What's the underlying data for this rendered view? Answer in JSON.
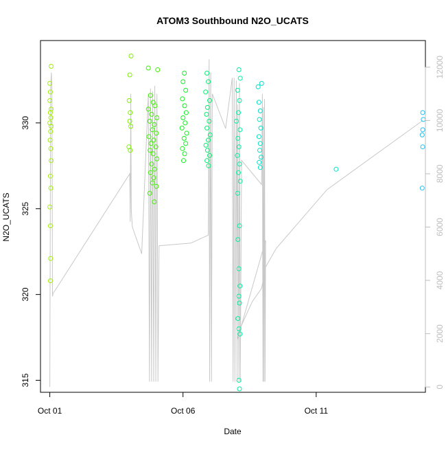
{
  "chart_data": {
    "type": "scatter",
    "title": "ATOM3 Southbound N2O_UCATS",
    "xlabel": "Date",
    "ylabel": "N2O_UCATS",
    "x_ticks": [
      "Oct 01",
      "Oct 06",
      "Oct 11"
    ],
    "y_ticks": [
      "315",
      "320",
      "325",
      "330"
    ],
    "y2_ticks": [
      "0",
      "2000",
      "4000",
      "6000",
      "8000",
      "10000",
      "12000"
    ],
    "xlim": [
      -0.35,
      14.1
    ],
    "ylim": [
      314.3,
      334.8
    ],
    "y2lim": [
      -200,
      13000
    ],
    "grid": false,
    "legend": "none",
    "colors": {
      "altitude_line": "#c8c8c8",
      "right_axis": "#bdbdbd",
      "point_scale": [
        "#a0f000",
        "#7ef000",
        "#3ef000",
        "#10f020",
        "#00f070",
        "#00f0a0",
        "#00e0c8",
        "#20c0f0"
      ]
    },
    "series": [
      {
        "name": "N2O_UCATS",
        "axis": "left",
        "points": [
          [
            0.05,
            333.3,
            0
          ],
          [
            0.0,
            332.3,
            0
          ],
          [
            0.02,
            331.8,
            0
          ],
          [
            0.0,
            331.3,
            0
          ],
          [
            0.05,
            330.8,
            0
          ],
          [
            0.02,
            330.6,
            0
          ],
          [
            0.04,
            330.3,
            0
          ],
          [
            0.0,
            330.0,
            0
          ],
          [
            0.05,
            329.8,
            0
          ],
          [
            0.03,
            329.5,
            0
          ],
          [
            0.01,
            329.0,
            0
          ],
          [
            0.04,
            328.5,
            0
          ],
          [
            0.05,
            327.8,
            0
          ],
          [
            0.02,
            326.9,
            0
          ],
          [
            0.04,
            326.2,
            0
          ],
          [
            0.0,
            325.1,
            0
          ],
          [
            0.02,
            324.0,
            0
          ],
          [
            0.03,
            322.1,
            0
          ],
          [
            0.02,
            320.8,
            0
          ],
          [
            3.05,
            333.9,
            1
          ],
          [
            3.0,
            332.8,
            1
          ],
          [
            2.98,
            331.3,
            1
          ],
          [
            3.02,
            330.6,
            1
          ],
          [
            3.0,
            330.1,
            1
          ],
          [
            3.04,
            329.8,
            1
          ],
          [
            2.97,
            328.6,
            1
          ],
          [
            3.02,
            328.4,
            1
          ],
          [
            3.7,
            333.2,
            2
          ],
          [
            4.05,
            333.1,
            2
          ],
          [
            3.78,
            331.6,
            2
          ],
          [
            3.88,
            331.2,
            2
          ],
          [
            3.95,
            331.0,
            2
          ],
          [
            3.7,
            330.8,
            2
          ],
          [
            3.82,
            330.5,
            2
          ],
          [
            4.02,
            330.3,
            2
          ],
          [
            3.75,
            330.1,
            2
          ],
          [
            3.92,
            329.9,
            2
          ],
          [
            3.85,
            329.6,
            2
          ],
          [
            4.0,
            329.4,
            2
          ],
          [
            3.72,
            329.2,
            2
          ],
          [
            3.9,
            329.0,
            2
          ],
          [
            3.8,
            328.8,
            2
          ],
          [
            3.98,
            328.6,
            2
          ],
          [
            3.76,
            328.4,
            2
          ],
          [
            3.88,
            328.2,
            2
          ],
          [
            4.02,
            327.9,
            2
          ],
          [
            3.82,
            327.6,
            2
          ],
          [
            3.93,
            327.3,
            2
          ],
          [
            3.78,
            327.1,
            2
          ],
          [
            3.9,
            326.8,
            2
          ],
          [
            3.85,
            326.5,
            2
          ],
          [
            4.0,
            326.3,
            2
          ],
          [
            3.75,
            325.9,
            2
          ],
          [
            3.92,
            325.4,
            2
          ],
          [
            5.05,
            332.9,
            3
          ],
          [
            5.0,
            332.4,
            3
          ],
          [
            5.1,
            331.9,
            3
          ],
          [
            4.98,
            331.4,
            3
          ],
          [
            5.06,
            331.0,
            3
          ],
          [
            5.12,
            330.6,
            3
          ],
          [
            5.0,
            330.3,
            3
          ],
          [
            5.08,
            330.0,
            3
          ],
          [
            4.96,
            329.7,
            3
          ],
          [
            5.14,
            329.4,
            3
          ],
          [
            5.04,
            329.1,
            3
          ],
          [
            5.1,
            328.8,
            3
          ],
          [
            4.98,
            328.5,
            3
          ],
          [
            5.06,
            328.2,
            3
          ],
          [
            5.02,
            327.8,
            3
          ],
          [
            5.9,
            332.9,
            4
          ],
          [
            5.95,
            332.4,
            4
          ],
          [
            5.85,
            331.8,
            4
          ],
          [
            6.0,
            331.3,
            4
          ],
          [
            5.92,
            330.9,
            4
          ],
          [
            5.88,
            330.5,
            4
          ],
          [
            5.98,
            330.1,
            4
          ],
          [
            5.9,
            329.7,
            4
          ],
          [
            6.02,
            329.3,
            4
          ],
          [
            5.95,
            329.0,
            4
          ],
          [
            5.86,
            328.7,
            4
          ],
          [
            5.92,
            328.4,
            4
          ],
          [
            6.0,
            328.1,
            4
          ],
          [
            5.9,
            327.8,
            4
          ],
          [
            5.96,
            327.5,
            4
          ],
          [
            7.1,
            333.1,
            5
          ],
          [
            7.15,
            332.6,
            5
          ],
          [
            7.05,
            331.9,
            5
          ],
          [
            7.12,
            331.3,
            5
          ],
          [
            7.08,
            330.6,
            5
          ],
          [
            7.0,
            330.1,
            5
          ],
          [
            7.14,
            329.6,
            5
          ],
          [
            7.06,
            329.1,
            5
          ],
          [
            7.1,
            328.6,
            5
          ],
          [
            7.04,
            328.1,
            5
          ],
          [
            7.12,
            327.6,
            5
          ],
          [
            7.08,
            327.1,
            5
          ],
          [
            7.15,
            326.6,
            5
          ],
          [
            7.05,
            325.9,
            5
          ],
          [
            7.12,
            324.0,
            5
          ],
          [
            7.06,
            323.2,
            5
          ],
          [
            7.1,
            321.5,
            5
          ],
          [
            7.14,
            320.5,
            5
          ],
          [
            7.1,
            319.9,
            5
          ],
          [
            7.12,
            319.5,
            5
          ],
          [
            7.06,
            318.6,
            5
          ],
          [
            7.1,
            318.0,
            5
          ],
          [
            7.14,
            317.7,
            5
          ],
          [
            7.1,
            315.0,
            5
          ],
          [
            7.12,
            314.5,
            5
          ],
          [
            7.95,
            332.3,
            6
          ],
          [
            7.82,
            332.1,
            6
          ],
          [
            7.85,
            331.2,
            6
          ],
          [
            7.9,
            330.7,
            6
          ],
          [
            7.87,
            330.2,
            6
          ],
          [
            7.92,
            329.7,
            6
          ],
          [
            7.85,
            329.2,
            6
          ],
          [
            7.9,
            328.8,
            6
          ],
          [
            7.88,
            328.4,
            6
          ],
          [
            7.93,
            328.0,
            6
          ],
          [
            7.86,
            327.7,
            6
          ],
          [
            7.9,
            327.4,
            6
          ],
          [
            10.75,
            327.3,
            6
          ],
          [
            14.0,
            330.6,
            7
          ],
          [
            14.02,
            330.2,
            7
          ],
          [
            14.0,
            329.6,
            7
          ],
          [
            13.98,
            329.3,
            7
          ],
          [
            14.0,
            328.6,
            7
          ],
          [
            13.98,
            326.2,
            7
          ]
        ]
      },
      {
        "name": "Altitude",
        "axis": "right",
        "type": "line",
        "points": [
          [
            0.0,
            0
          ],
          [
            0.03,
            11200
          ],
          [
            0.06,
            11800
          ],
          [
            0.08,
            11000
          ],
          [
            0.1,
            3400
          ],
          [
            0.12,
            3500
          ],
          [
            3.0,
            8000
          ],
          [
            3.02,
            6200
          ],
          [
            3.04,
            11000
          ],
          [
            3.06,
            6600
          ],
          [
            3.1,
            6000
          ],
          [
            3.45,
            5000
          ],
          [
            3.7,
            11000
          ],
          [
            3.74,
            200
          ],
          [
            3.78,
            11200
          ],
          [
            3.82,
            200
          ],
          [
            3.86,
            11100
          ],
          [
            3.9,
            200
          ],
          [
            3.94,
            11300
          ],
          [
            3.98,
            200
          ],
          [
            4.02,
            11000
          ],
          [
            4.06,
            200
          ],
          [
            4.1,
            5300
          ],
          [
            5.3,
            5400
          ],
          [
            5.95,
            5700
          ],
          [
            5.98,
            12300
          ],
          [
            6.0,
            200
          ],
          [
            6.04,
            11800
          ],
          [
            6.07,
            200
          ],
          [
            6.1,
            11000
          ],
          [
            6.6,
            9700
          ],
          [
            6.85,
            11600
          ],
          [
            6.88,
            200
          ],
          [
            6.92,
            11600
          ],
          [
            6.95,
            200
          ],
          [
            7.0,
            11500
          ],
          [
            7.03,
            200
          ],
          [
            7.05,
            10600
          ],
          [
            7.1,
            200
          ],
          [
            7.12,
            11400
          ],
          [
            7.15,
            200
          ],
          [
            7.2,
            8500
          ],
          [
            7.95,
            7600
          ],
          [
            7.98,
            11000
          ],
          [
            8.0,
            200
          ],
          [
            8.02,
            10500
          ],
          [
            8.04,
            200
          ],
          [
            8.06,
            10800
          ],
          [
            8.08,
            200
          ],
          [
            8.1,
            5500
          ],
          [
            7.05,
            1800
          ],
          [
            7.1,
            2100
          ],
          [
            7.6,
            3200
          ],
          [
            7.95,
            3700
          ],
          [
            8.1,
            4500
          ],
          [
            8.5,
            5200
          ],
          [
            10.4,
            7400
          ],
          [
            14.0,
            10000
          ]
        ]
      }
    ]
  }
}
